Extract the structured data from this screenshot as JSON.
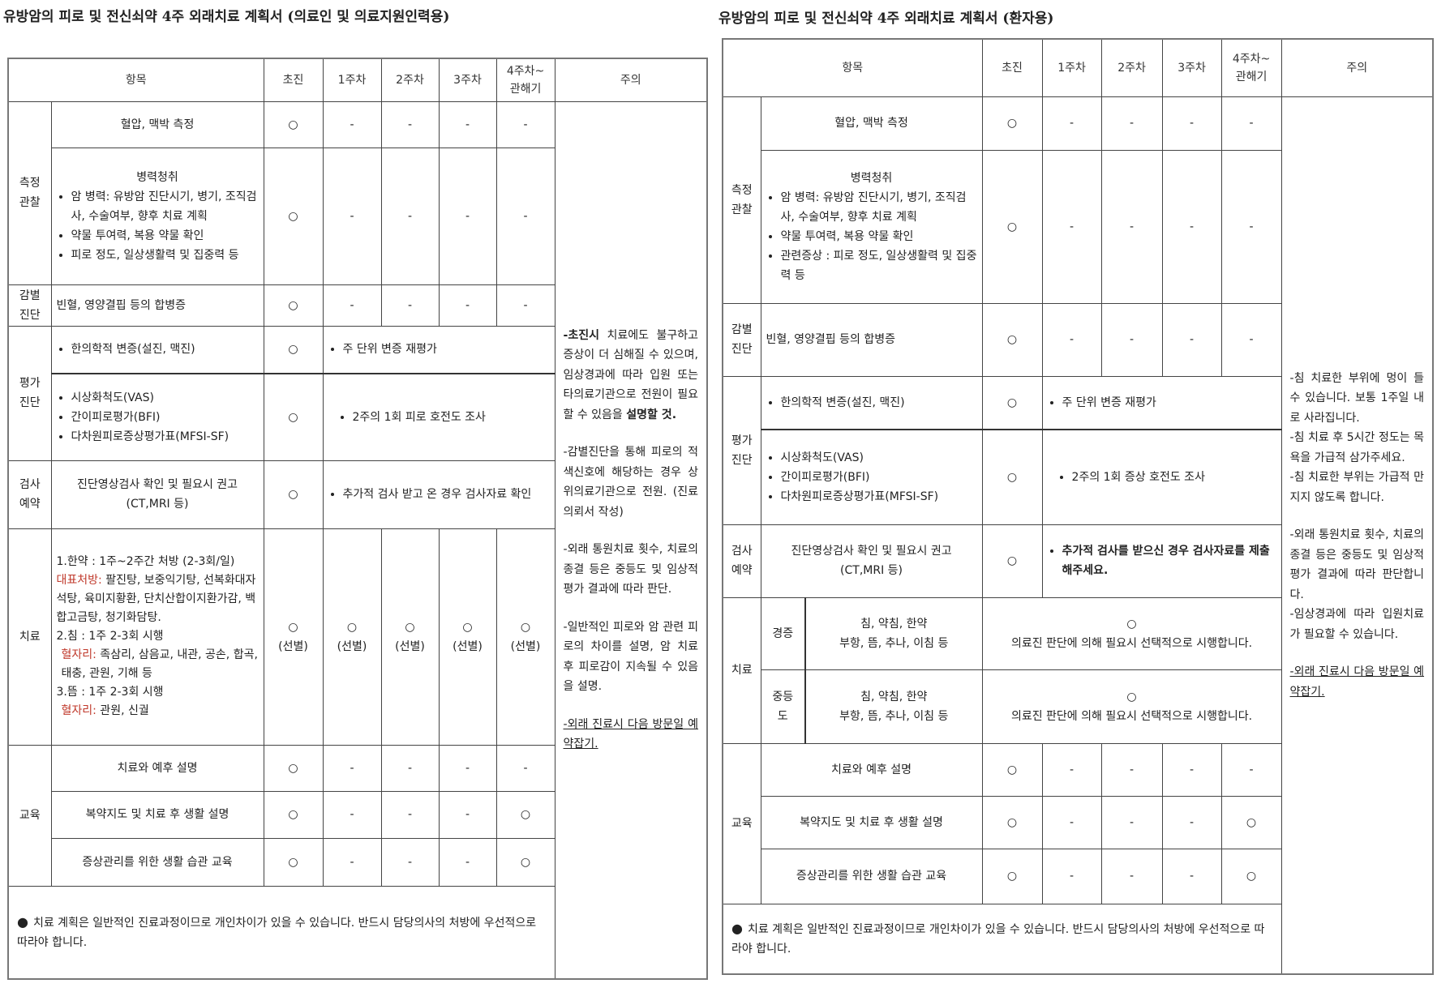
{
  "left": {
    "title": "유방암의 피로 및 전신쇠약 4주 외래치료 계획서 (의료인 및 의료지원인력용)",
    "headers": [
      "항목",
      "초진",
      "1주차",
      "2주차",
      "3주차",
      "4주차~\n관해기",
      "주의"
    ],
    "categories": {
      "measure": "측정\n관찰",
      "diff": "감별\n진단",
      "eval": "평가\n진단",
      "exam": "검사\n예약",
      "treat": "치료",
      "edu": "교육"
    },
    "rows": [
      {
        "item": "혈압, 맥박 측정",
        "marks": [
          "○",
          "-",
          "-",
          "-",
          "-"
        ]
      },
      {
        "item_title": "병력청취",
        "bullets": [
          "암 병력: 유방암 진단시기, 병기, 조직검사, 수술여부, 향후 치료 계획",
          "약물 투여력, 복용 약물 확인",
          "피로 정도, 일상생활력 및 집중력 등"
        ],
        "marks": [
          "○",
          "-",
          "-",
          "-",
          "-"
        ]
      },
      {
        "item": "빈혈, 영양결핍 등의 합병증",
        "marks": [
          "○",
          "-",
          "-",
          "-",
          "-"
        ]
      },
      {
        "bullets": [
          "한의학적 변증(설진, 맥진)"
        ],
        "mark": "○",
        "followup": "주 단위 변증 재평가"
      },
      {
        "bullets": [
          "시상화척도(VAS)",
          "간이피로평가(BFI)",
          "다차원피로증상평가표(MFSI-SF)"
        ],
        "mark": "○",
        "followup": "2주의 1회 피로 호전도 조사"
      },
      {
        "item": "진단영상검사 확인 및 필요시 권고\n(CT,MRI 등)",
        "mark": "○",
        "followup": "추가적 검사 받고 온 경우 검사자료 확인"
      },
      {
        "lines": {
          "l1": "1.한약 : 1주~2주간 처방 (2-3회/일)",
          "l2_red": "대표처방:",
          "l2": " 팔진탕, 보중익기탕, 선복화대자석탕, 육미지황환, 단치산합이지환가감, 백합고금탕, 청기화담탕.",
          "l3": "2.침 : 1주 2-3회 시행",
          "l4_red": "혈자리:",
          "l4": " 족삼리, 삼음교, 내관, 공손, 합곡, 태충, 관원, 기해 등",
          "l5": "3.뜸 : 1주 2-3회 시행",
          "l6_red": "혈자리:",
          "l6": " 관원, 신궐"
        },
        "mark": "○",
        "mark_note": "(선별)"
      },
      {
        "item": "치료와 예후 설명",
        "marks": [
          "○",
          "-",
          "-",
          "-",
          "-"
        ]
      },
      {
        "item": "복약지도 및 치료 후 생활 설명",
        "marks": [
          "○",
          "-",
          "-",
          "-",
          "○"
        ]
      },
      {
        "item": "증상관리를 위한 생활 습관 교육",
        "marks": [
          "○",
          "-",
          "-",
          "-",
          "○"
        ]
      }
    ],
    "footer": "치료 계획은 일반적인 진료과정이므로 개인차이가 있을 수 있습니다. 반드시 담당의사의 처방에 우선적으로 따라야 합니다.",
    "notes": {
      "p1_bold": "-초진시",
      "p1": " 치료에도 불구하고 증상이 더 심해질 수 있으며, 임상경과에 따라 입원 또는 타의료기관으로 전원이 필요할 수 있음을 ",
      "p1_bold2": "설명할 것",
      "p1_end": ".",
      "p2": "-감별진단을 통해 피로의 적색신호에 해당하는 경우 상위의료기관으로 전원. (진료의뢰서 작성)",
      "p3": "-외래 통원치료 횟수, 치료의 종결 등은 중등도 및 임상적 평가 결과에 따라 판단.",
      "p4": "-일반적인 피로와 암 관련 피로의 차이를 설명, 암 치료 후 피로감이 지속될 수 있음을 설명.",
      "p5": "-외래 진료시 다음 방문일 예약잡기."
    }
  },
  "right": {
    "title": "유방암의 피로 및 전신쇠약 4주 외래치료 계획서 (환자용)",
    "headers": [
      "항목",
      "초진",
      "1주차",
      "2주차",
      "3주차",
      "4주차~\n관해기",
      "주의"
    ],
    "categories": {
      "measure": "측정\n관찰",
      "diff": "감별\n진단",
      "eval": "평가\n진단",
      "exam": "검사\n예약",
      "treat": "치료",
      "edu": "교육"
    },
    "rows": [
      {
        "item": "혈압, 맥박 측정",
        "marks": [
          "○",
          "-",
          "-",
          "-",
          "-"
        ]
      },
      {
        "item_title": "병력청취",
        "bullets": [
          "암 병력: 유방암 진단시기, 병기, 조직검사, 수술여부, 향후 치료 계획",
          "약물 투여력, 복용 약물 확인",
          "관련증상 : 피로 정도, 일상생활력 및 집중력 등"
        ],
        "marks": [
          "○",
          "-",
          "-",
          "-",
          "-"
        ]
      },
      {
        "item": "빈혈, 영양결핍 등의 합병증",
        "marks": [
          "○",
          "-",
          "-",
          "-",
          "-"
        ]
      },
      {
        "bullets": [
          "한의학적 변증(설진, 맥진)"
        ],
        "mark": "○",
        "followup": "주 단위 변증 재평가"
      },
      {
        "bullets": [
          "시상화척도(VAS)",
          "간이피로평가(BFI)",
          "다차원피로증상평가표(MFSI-SF)"
        ],
        "mark": "○",
        "followup": "2주의 1회 증상 호전도 조사"
      },
      {
        "item": "진단영상검사 확인 및 필요시 권고\n(CT,MRI 등)",
        "mark": "○",
        "followup": "추가적 검사를 받으신 경우 검사자료를 제출해주세요."
      },
      {
        "severity": "경증",
        "item": "침, 약침, 한약\n부항, 뜸, 추나, 이침 등",
        "mark": "○",
        "note": "의료진 판단에 의해 필요시 선택적으로 시행합니다."
      },
      {
        "severity": "중등\n도",
        "item": "침, 약침, 한약\n부항, 뜸, 추나, 이침 등",
        "mark": "○",
        "note": "의료진 판단에 의해 필요시 선택적으로 시행합니다."
      },
      {
        "item": "치료와 예후 설명",
        "marks": [
          "○",
          "-",
          "-",
          "-",
          "-"
        ]
      },
      {
        "item": "복약지도 및 치료 후 생활 설명",
        "marks": [
          "○",
          "-",
          "-",
          "-",
          "○"
        ]
      },
      {
        "item": "증상관리를 위한 생활 습관 교육",
        "marks": [
          "○",
          "-",
          "-",
          "-",
          "○"
        ]
      }
    ],
    "footer": "치료 계획은 일반적인 진료과정이므로 개인차이가 있을 수 있습니다. 반드시 담당의사의 처방에 우선적으로 따라야 합니다.",
    "notes": {
      "p1": "-침 치료한 부위에 멍이 들 수 있습니다. 보통 1주일 내로 사라집니다.",
      "p2": "-침 치료 후 5시간 정도는 목욕을 가급적 삼가주세요.",
      "p3": "-침 치료한 부위는 가급적 만지지 않도록 합니다.",
      "p4": "-외래 통원치료 횟수, 치료의 종결 등은 중등도 및 임상적 평가 결과에 따라 판단합니다.",
      "p5": "-임상경과에 따라 입원치료가 필요할 수 있습니다.",
      "p6": "-외래 진료시 다음 방문일 예약잡기."
    }
  },
  "colors": {
    "accent_red": "#c0392b",
    "border": "#444444"
  }
}
